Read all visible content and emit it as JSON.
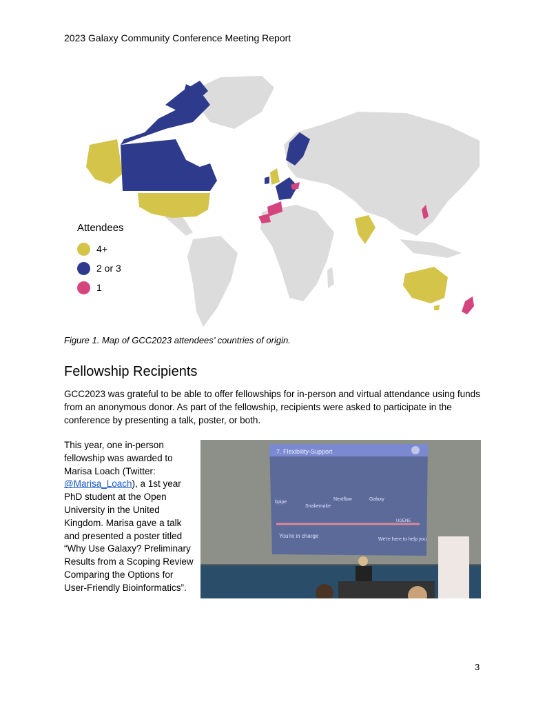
{
  "header": {
    "title": "2023 Galaxy Community Conference Meeting Report"
  },
  "map": {
    "legend_title": "Attendees",
    "legend": [
      {
        "label": "4+",
        "color": "#d4c44a"
      },
      {
        "label": "2 or 3",
        "color": "#2e3a8c"
      },
      {
        "label": "1",
        "color": "#d4457e"
      }
    ],
    "land_color": "#dcdcdc"
  },
  "figure": {
    "caption": "Figure 1. Map of GCC2023 attendees’ countries of origin."
  },
  "section": {
    "heading": "Fellowship Recipients",
    "paragraph": "GCC2023 was grateful to be able to offer fellowships for in-person and virtual attendance using funds from an anonymous donor. As part of the fellowship, recipients were asked to participate in the conference by presenting a talk, poster, or both."
  },
  "fellow": {
    "text_before": "This year, one in-person fellowship was awarded to Marisa Loach (Twitter: ",
    "twitter_handle": "@Marisa_Loach",
    "text_after": "), a 1st year PhD student at the Open University in the United Kingdom. Marisa gave a talk and presented a poster titled “Why Use Galaxy? Preliminary Results from a Scoping Review Comparing the Options for User-Friendly Bioinformatics”."
  },
  "photo": {
    "slide_title": "7. Flexibility-Support",
    "slide_labels": [
      "bpipe",
      "Snakemake",
      "Nextflow",
      "Galaxy",
      "UGENE"
    ],
    "left_caption": "You're in charge",
    "right_caption": "We're here to help you"
  },
  "page_number": "3"
}
